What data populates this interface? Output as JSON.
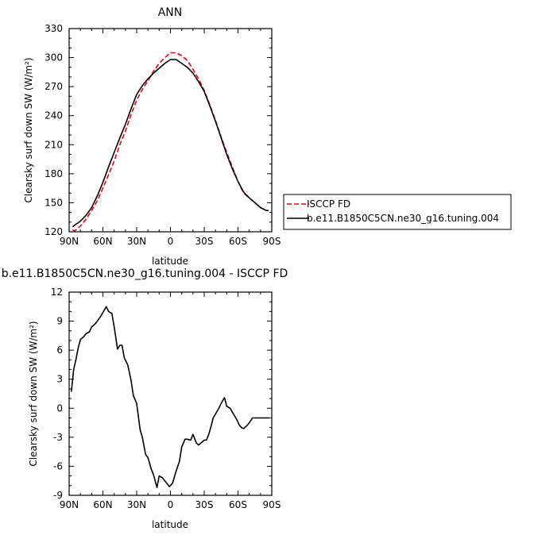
{
  "chart_data": [
    {
      "type": "line",
      "title": "ANN",
      "xlabel": "latitude",
      "ylabel": "Clearsky surf down SW (W/m²)",
      "x_tick_labels": [
        "90N",
        "60N",
        "30N",
        "0",
        "30S",
        "60S",
        "90S"
      ],
      "y_ticks": [
        120,
        150,
        180,
        210,
        240,
        270,
        300,
        330
      ],
      "xlim": [
        90,
        -90
      ],
      "ylim": [
        120,
        330
      ],
      "grid": false,
      "legend_placement": "right",
      "series": [
        {
          "name": "ISCCP FD",
          "color": "#e8000b",
          "dash": "dashed",
          "x": [
            87,
            85,
            80,
            75,
            70,
            65,
            60,
            55,
            50,
            45,
            40,
            35,
            30,
            25,
            20,
            15,
            10,
            5,
            0,
            -5,
            -10,
            -15,
            -20,
            -25,
            -30,
            -35,
            -40,
            -45,
            -50,
            -55,
            -60,
            -65,
            -70,
            -75,
            -80,
            -85,
            -87
          ],
          "y": [
            122,
            121,
            126,
            133,
            142,
            152,
            165,
            179,
            193,
            210,
            224,
            241,
            256,
            267,
            276,
            286,
            294,
            300,
            305,
            305,
            302,
            297,
            288,
            278,
            266,
            251,
            235,
            218,
            202,
            187,
            172,
            160,
            155,
            150,
            145,
            142,
            142
          ]
        },
        {
          "name": "b.e11.B1850C5CN.ne30_g16.tuning.004",
          "color": "#000000",
          "dash": "solid",
          "x": [
            87,
            85,
            80,
            75,
            70,
            65,
            60,
            55,
            50,
            45,
            40,
            35,
            30,
            25,
            20,
            15,
            10,
            5,
            0,
            -5,
            -10,
            -15,
            -20,
            -25,
            -30,
            -35,
            -40,
            -45,
            -50,
            -55,
            -60,
            -65,
            -70,
            -75,
            -80,
            -85,
            -87
          ],
          "y": [
            125,
            127,
            131,
            137,
            145,
            157,
            171,
            187,
            202,
            217,
            231,
            247,
            262,
            271,
            278,
            284,
            289,
            294,
            298,
            298,
            294,
            290,
            284,
            275,
            265,
            250,
            234,
            217,
            200,
            185,
            172,
            161,
            155,
            150,
            145,
            142,
            142
          ]
        }
      ]
    },
    {
      "type": "line",
      "title": "b.e11.B1850C5CN.ne30_g16.tuning.004 - ISCCP FD",
      "xlabel": "latitude",
      "ylabel": "Clearsky surf down SW (W/m²)",
      "x_tick_labels": [
        "90N",
        "60N",
        "30N",
        "0",
        "30S",
        "60S",
        "90S"
      ],
      "y_ticks": [
        -9,
        -6,
        -3,
        0,
        3,
        6,
        9,
        12
      ],
      "xlim": [
        90,
        -90
      ],
      "ylim": [
        -9,
        12
      ],
      "grid": false,
      "series": [
        {
          "name": "",
          "color": "#000000",
          "dash": "solid",
          "x": [
            88,
            86,
            84,
            82,
            80,
            77,
            75,
            72,
            70,
            67,
            65,
            62,
            60,
            57,
            55,
            52,
            50,
            47,
            45,
            43,
            41,
            38,
            35,
            33,
            30,
            27,
            25,
            22,
            20,
            17,
            15,
            12,
            10,
            7,
            5,
            3,
            1,
            0,
            -2,
            -5,
            -8,
            -10,
            -13,
            -15,
            -18,
            -20,
            -23,
            -25,
            -28,
            -30,
            -32,
            -34,
            -36,
            -38,
            -40,
            -43,
            -45,
            -48,
            -50,
            -53,
            -55,
            -57,
            -59,
            -61,
            -63,
            -65,
            -68,
            -70,
            -73,
            -75,
            -78,
            -80,
            -83,
            -85,
            -88
          ],
          "y": [
            1.7,
            4.0,
            5.0,
            6.2,
            7.1,
            7.4,
            7.7,
            7.9,
            8.4,
            8.7,
            9.0,
            9.5,
            9.9,
            10.5,
            10.0,
            9.8,
            8.4,
            6.1,
            6.5,
            6.5,
            5.2,
            4.5,
            2.9,
            1.3,
            0.5,
            -2.2,
            -3.0,
            -4.8,
            -5.1,
            -6.3,
            -6.9,
            -8.2,
            -7.0,
            -7.2,
            -7.5,
            -7.8,
            -8.1,
            -8.0,
            -7.7,
            -6.5,
            -5.5,
            -4.0,
            -3.2,
            -3.2,
            -3.3,
            -2.7,
            -3.6,
            -3.8,
            -3.5,
            -3.3,
            -3.3,
            -2.7,
            -1.9,
            -1.0,
            -0.6,
            0.0,
            0.5,
            1.1,
            0.2,
            0.0,
            -0.4,
            -0.8,
            -1.2,
            -1.7,
            -2.0,
            -2.1,
            -1.8,
            -1.5,
            -1.0,
            -1.0,
            -1.0,
            -1.0,
            -1.0,
            -1.0,
            -1.0
          ]
        }
      ]
    }
  ]
}
